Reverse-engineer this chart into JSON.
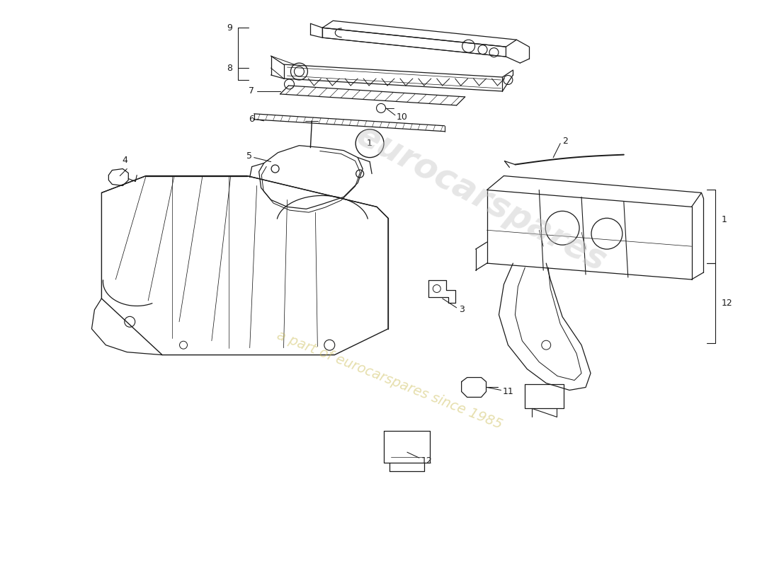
{
  "bg_color": "#ffffff",
  "line_color": "#1a1a1a",
  "watermark1": "eurocarspares",
  "watermark2": "a part of eurocarspares since 1985",
  "figsize": [
    11.0,
    8.0
  ],
  "dpi": 100
}
